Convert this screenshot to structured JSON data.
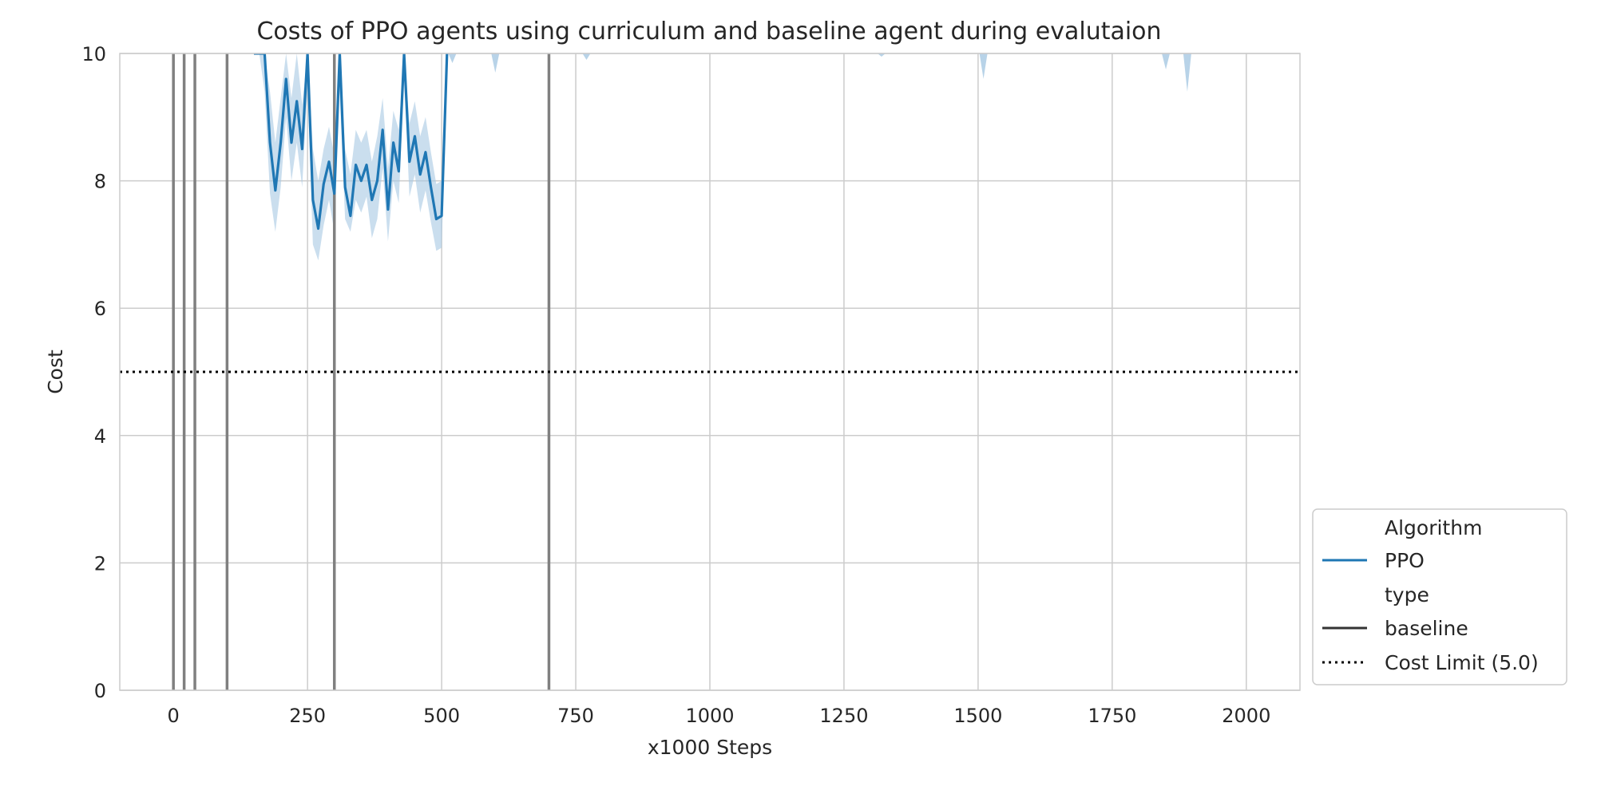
{
  "chart_data": {
    "type": "line",
    "title": "Costs of PPO agents using curriculum and baseline agent during evalutaion",
    "xlabel": "x1000 Steps",
    "ylabel": "Cost",
    "xlim": [
      -100,
      2100
    ],
    "ylim": [
      0,
      10
    ],
    "xticks": [
      0,
      250,
      500,
      750,
      1000,
      1250,
      1500,
      1750,
      2000
    ],
    "yticks": [
      0,
      2,
      4,
      6,
      8,
      10
    ],
    "grid": true,
    "legend_position": "lower-right-outside",
    "colors": {
      "ppo": "#1f77b4",
      "band": "#a6c8e2",
      "curriculum_marker": "#808080",
      "cost_limit": "#000000",
      "grid": "#cccccc",
      "frame": "#cccccc"
    },
    "legend": {
      "groups": [
        {
          "title": "Algorithm",
          "entries": [
            {
              "label": "PPO",
              "style": "solid",
              "color": "#1f77b4"
            }
          ]
        },
        {
          "title": "type",
          "entries": [
            {
              "label": "baseline",
              "style": "solid",
              "color": "#333333"
            }
          ]
        }
      ],
      "extra": [
        {
          "label": "Cost Limit (5.0)",
          "style": "dotted",
          "color": "#000000"
        }
      ]
    },
    "cost_limit": 5.0,
    "curriculum_markers_x": [
      0,
      20,
      40,
      100,
      300,
      700
    ],
    "series": [
      {
        "name": "PPO",
        "style": "solid",
        "x": [
          150,
          160,
          170,
          180,
          190,
          200,
          210,
          220,
          230,
          240,
          250,
          260,
          270,
          280,
          290,
          300,
          310,
          320,
          330,
          340,
          350,
          360,
          370,
          380,
          390,
          400,
          410,
          420,
          430,
          440,
          450,
          460,
          470,
          480,
          490,
          500,
          510
        ],
        "y": [
          12.0,
          11.0,
          10.0,
          8.6,
          7.85,
          8.6,
          9.6,
          8.6,
          9.25,
          8.5,
          10.0,
          7.7,
          7.25,
          7.95,
          8.3,
          7.8,
          10.0,
          7.9,
          7.45,
          8.25,
          8.0,
          8.25,
          7.7,
          8.0,
          8.8,
          7.55,
          8.6,
          8.15,
          10.0,
          8.3,
          8.7,
          8.1,
          8.45,
          7.9,
          7.4,
          7.45,
          10.0
        ],
        "upper": [
          12.0,
          11.8,
          10.6,
          9.4,
          8.6,
          9.3,
          10.2,
          9.3,
          10.0,
          9.2,
          10.6,
          8.5,
          8.0,
          8.5,
          8.85,
          8.4,
          10.6,
          8.5,
          8.1,
          8.8,
          8.6,
          8.8,
          8.3,
          8.7,
          9.3,
          8.2,
          9.1,
          8.8,
          10.5,
          8.9,
          9.25,
          8.7,
          9.0,
          8.45,
          7.95,
          8.0,
          10.4
        ],
        "lower": [
          11.5,
          10.2,
          9.4,
          7.8,
          7.2,
          7.9,
          9.0,
          8.0,
          8.6,
          7.9,
          9.5,
          7.0,
          6.75,
          7.3,
          7.7,
          7.2,
          9.4,
          7.4,
          7.2,
          7.7,
          7.5,
          7.75,
          7.1,
          7.4,
          8.2,
          7.05,
          8.0,
          7.65,
          9.6,
          7.75,
          8.1,
          7.5,
          7.85,
          7.35,
          6.9,
          6.95,
          9.6
        ]
      },
      {
        "name": "PPO-dips",
        "style": "band-only",
        "x": [
          520,
          600,
          770,
          1320,
          1510,
          1850,
          1890
        ],
        "lower": [
          9.85,
          9.7,
          9.9,
          9.95,
          9.6,
          9.75,
          9.4
        ]
      }
    ]
  }
}
